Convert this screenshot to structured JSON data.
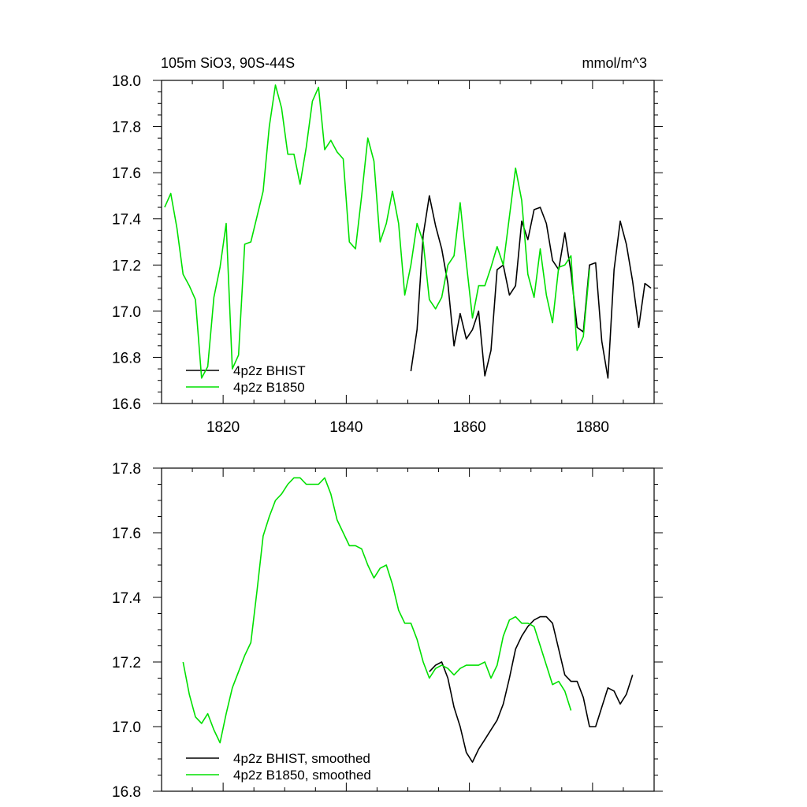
{
  "header": {
    "title": "105m SiO3, 90S-44S",
    "units": "mmol/m^3"
  },
  "colors": {
    "bhist": "#000000",
    "b1850": "#00e000",
    "frame": "#000000"
  },
  "chart_data": [
    {
      "type": "line",
      "title": "105m SiO3, 90S-44S",
      "units": "mmol/m^3",
      "xlim": [
        1810,
        1890
      ],
      "ylim": [
        16.6,
        18.0
      ],
      "xticks": [
        1820,
        1840,
        1860,
        1880
      ],
      "xtick_labels": [
        "1820",
        "1840",
        "1860",
        "1880"
      ],
      "yticks": [
        16.6,
        16.8,
        17.0,
        17.2,
        17.4,
        17.6,
        17.8,
        18.0
      ],
      "ytick_labels": [
        "16.6",
        "16.8",
        "17.0",
        "17.2",
        "17.4",
        "17.6",
        "17.8",
        "18.0"
      ],
      "grid": false,
      "legend": "bottom-left",
      "series": [
        {
          "name": "4p2z BHIST",
          "color": "#000000",
          "x": [
            1850.5,
            1851.5,
            1852.5,
            1853.5,
            1854.5,
            1855.5,
            1856.5,
            1857.5,
            1858.5,
            1859.5,
            1860.5,
            1861.5,
            1862.5,
            1863.5,
            1864.5,
            1865.5,
            1866.5,
            1867.5,
            1868.5,
            1869.5,
            1870.5,
            1871.5,
            1872.5,
            1873.5,
            1874.5,
            1875.5,
            1876.5,
            1877.5,
            1878.5,
            1879.5,
            1880.5,
            1881.5,
            1882.5,
            1883.5,
            1884.5,
            1885.5,
            1886.5,
            1887.5,
            1888.5,
            1889.5
          ],
          "y": [
            16.74,
            16.92,
            17.33,
            17.5,
            17.37,
            17.27,
            17.12,
            16.85,
            16.99,
            16.88,
            16.92,
            17.0,
            16.72,
            16.83,
            17.18,
            17.2,
            17.07,
            17.11,
            17.39,
            17.31,
            17.44,
            17.45,
            17.38,
            17.22,
            17.18,
            17.34,
            17.17,
            16.93,
            16.91,
            17.2,
            17.21,
            16.87,
            16.71,
            17.18,
            17.39,
            17.29,
            17.13,
            16.93,
            17.12,
            17.1
          ]
        },
        {
          "name": "4p2z B1850",
          "color": "#00e000",
          "x": [
            1810.5,
            1811.5,
            1812.5,
            1813.5,
            1814.5,
            1815.5,
            1816.5,
            1817.5,
            1818.5,
            1819.5,
            1820.5,
            1821.5,
            1822.5,
            1823.5,
            1824.5,
            1825.5,
            1826.5,
            1827.5,
            1828.5,
            1829.5,
            1830.5,
            1831.5,
            1832.5,
            1833.5,
            1834.5,
            1835.5,
            1836.5,
            1837.5,
            1838.5,
            1839.5,
            1840.5,
            1841.5,
            1842.5,
            1843.5,
            1844.5,
            1845.5,
            1846.5,
            1847.5,
            1848.5,
            1849.5,
            1850.5,
            1851.5,
            1852.5,
            1853.5,
            1854.5,
            1855.5,
            1856.5,
            1857.5,
            1858.5,
            1859.5,
            1860.5,
            1861.5,
            1862.5,
            1863.5,
            1864.5,
            1865.5,
            1866.5,
            1867.5,
            1868.5,
            1869.5,
            1870.5,
            1871.5,
            1872.5,
            1873.5,
            1874.5,
            1875.5,
            1876.5,
            1877.5,
            1878.5,
            1879.5
          ],
          "y": [
            17.45,
            17.51,
            17.36,
            17.16,
            17.11,
            17.05,
            16.71,
            16.76,
            17.06,
            17.19,
            17.38,
            16.75,
            16.81,
            17.29,
            17.3,
            17.41,
            17.52,
            17.8,
            17.98,
            17.88,
            17.68,
            17.68,
            17.55,
            17.71,
            17.91,
            17.97,
            17.7,
            17.74,
            17.69,
            17.66,
            17.3,
            17.27,
            17.5,
            17.75,
            17.65,
            17.3,
            17.38,
            17.52,
            17.38,
            17.07,
            17.2,
            17.38,
            17.3,
            17.05,
            17.01,
            17.06,
            17.2,
            17.24,
            17.47,
            17.21,
            16.97,
            17.11,
            17.11,
            17.19,
            17.28,
            17.2,
            17.41,
            17.62,
            17.48,
            17.16,
            17.06,
            17.27,
            17.07,
            16.95,
            17.19,
            17.2,
            17.24,
            16.83,
            16.89,
            17.18
          ]
        }
      ]
    },
    {
      "type": "line",
      "xlim": [
        1810,
        1890
      ],
      "ylim": [
        16.8,
        17.8
      ],
      "xticks": [
        1820,
        1840,
        1860,
        1880
      ],
      "xtick_labels": [],
      "yticks": [
        16.8,
        17.0,
        17.2,
        17.4,
        17.6,
        17.8
      ],
      "ytick_labels": [
        "16.8",
        "17.0",
        "17.2",
        "17.4",
        "17.6",
        "17.8"
      ],
      "grid": false,
      "legend": "bottom-left",
      "series": [
        {
          "name": "4p2z BHIST, smoothed",
          "color": "#000000",
          "x": [
            1853.5,
            1854.5,
            1855.5,
            1856.5,
            1857.5,
            1858.5,
            1859.5,
            1860.5,
            1861.5,
            1862.5,
            1863.5,
            1864.5,
            1865.5,
            1866.5,
            1867.5,
            1868.5,
            1869.5,
            1870.5,
            1871.5,
            1872.5,
            1873.5,
            1874.5,
            1875.5,
            1876.5,
            1877.5,
            1878.5,
            1879.5,
            1880.5,
            1881.5,
            1882.5,
            1883.5,
            1884.5,
            1885.5,
            1886.5
          ],
          "y": [
            17.17,
            17.19,
            17.2,
            17.15,
            17.06,
            17.0,
            16.92,
            16.89,
            16.93,
            16.96,
            16.99,
            17.02,
            17.07,
            17.15,
            17.24,
            17.28,
            17.31,
            17.33,
            17.34,
            17.34,
            17.32,
            17.24,
            17.16,
            17.14,
            17.14,
            17.09,
            17.0,
            17.0,
            17.06,
            17.12,
            17.11,
            17.07,
            17.1,
            17.16
          ]
        },
        {
          "name": "4p2z B1850, smoothed",
          "color": "#00e000",
          "x": [
            1813.5,
            1814.5,
            1815.5,
            1816.5,
            1817.5,
            1818.5,
            1819.5,
            1820.5,
            1821.5,
            1822.5,
            1823.5,
            1824.5,
            1825.5,
            1826.5,
            1827.5,
            1828.5,
            1829.5,
            1830.5,
            1831.5,
            1832.5,
            1833.5,
            1834.5,
            1835.5,
            1836.5,
            1837.5,
            1838.5,
            1839.5,
            1840.5,
            1841.5,
            1842.5,
            1843.5,
            1844.5,
            1845.5,
            1846.5,
            1847.5,
            1848.5,
            1849.5,
            1850.5,
            1851.5,
            1852.5,
            1853.5,
            1854.5,
            1855.5,
            1856.5,
            1857.5,
            1858.5,
            1859.5,
            1860.5,
            1861.5,
            1862.5,
            1863.5,
            1864.5,
            1865.5,
            1866.5,
            1867.5,
            1868.5,
            1869.5,
            1870.5,
            1871.5,
            1872.5,
            1873.5,
            1874.5,
            1875.5,
            1876.5
          ],
          "y": [
            17.2,
            17.1,
            17.03,
            17.01,
            17.04,
            16.99,
            16.95,
            17.04,
            17.12,
            17.17,
            17.22,
            17.26,
            17.42,
            17.59,
            17.65,
            17.7,
            17.72,
            17.75,
            17.77,
            17.77,
            17.75,
            17.75,
            17.75,
            17.77,
            17.72,
            17.64,
            17.6,
            17.56,
            17.56,
            17.55,
            17.5,
            17.46,
            17.49,
            17.5,
            17.44,
            17.36,
            17.32,
            17.32,
            17.27,
            17.2,
            17.15,
            17.18,
            17.19,
            17.18,
            17.16,
            17.18,
            17.19,
            17.19,
            17.19,
            17.2,
            17.15,
            17.19,
            17.28,
            17.33,
            17.34,
            17.32,
            17.32,
            17.31,
            17.25,
            17.19,
            17.13,
            17.14,
            17.11,
            17.05
          ]
        }
      ]
    }
  ]
}
